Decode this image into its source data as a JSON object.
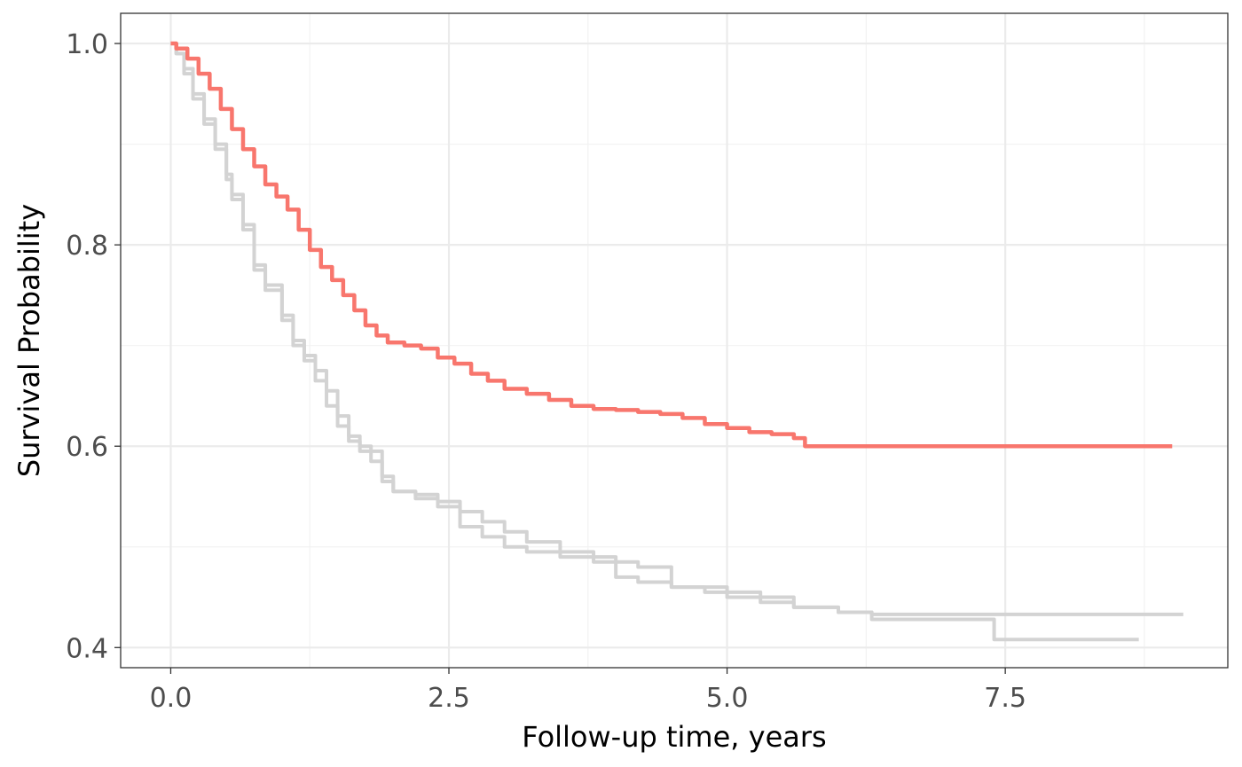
{
  "chart_data": {
    "type": "line",
    "xlabel": "Follow-up time, years",
    "ylabel": "Survival Probability",
    "xlim": [
      -0.45,
      9.5
    ],
    "ylim": [
      0.38,
      1.03
    ],
    "x_ticks": [
      0.0,
      2.5,
      5.0,
      7.5
    ],
    "x_tick_labels": [
      "0.0",
      "2.5",
      "5.0",
      "7.5"
    ],
    "y_ticks": [
      0.4,
      0.6,
      0.8,
      1.0
    ],
    "y_tick_labels": [
      "0.4",
      "0.6",
      "0.8",
      "1.0"
    ],
    "grid": true,
    "step": true,
    "series": [
      {
        "color": "#d3d3d3",
        "x": [
          0.0,
          0.05,
          0.12,
          0.2,
          0.3,
          0.4,
          0.5,
          0.55,
          0.65,
          0.75,
          0.85,
          1.0,
          1.1,
          1.2,
          1.3,
          1.4,
          1.5,
          1.6,
          1.7,
          1.8,
          1.9,
          2.0,
          2.2,
          2.4,
          2.6,
          2.8,
          3.0,
          3.2,
          3.5,
          3.8,
          4.0,
          4.2,
          4.5,
          4.8,
          5.0,
          5.3,
          5.6,
          6.0,
          6.3,
          7.0,
          7.4,
          7.8,
          8.2,
          8.7
        ],
        "y": [
          1.0,
          0.99,
          0.975,
          0.95,
          0.925,
          0.9,
          0.87,
          0.85,
          0.82,
          0.78,
          0.76,
          0.73,
          0.7,
          0.69,
          0.675,
          0.655,
          0.63,
          0.61,
          0.595,
          0.585,
          0.565,
          0.555,
          0.548,
          0.54,
          0.52,
          0.51,
          0.5,
          0.495,
          0.49,
          0.485,
          0.47,
          0.465,
          0.46,
          0.455,
          0.45,
          0.445,
          0.44,
          0.435,
          0.428,
          0.428,
          0.408,
          0.408,
          0.408,
          0.408
        ]
      },
      {
        "color": "#d3d3d3",
        "x": [
          0.0,
          0.05,
          0.12,
          0.2,
          0.3,
          0.4,
          0.5,
          0.55,
          0.65,
          0.75,
          0.85,
          1.0,
          1.1,
          1.2,
          1.3,
          1.4,
          1.5,
          1.6,
          1.7,
          1.8,
          1.9,
          2.0,
          2.2,
          2.4,
          2.6,
          2.8,
          3.0,
          3.2,
          3.5,
          3.8,
          4.0,
          4.2,
          4.5,
          4.8,
          5.0,
          5.3,
          5.6,
          6.0,
          6.3,
          7.0,
          7.5,
          8.0,
          8.5,
          9.1
        ],
        "y": [
          1.0,
          0.99,
          0.97,
          0.945,
          0.92,
          0.895,
          0.865,
          0.845,
          0.815,
          0.775,
          0.755,
          0.725,
          0.705,
          0.685,
          0.665,
          0.64,
          0.62,
          0.605,
          0.6,
          0.595,
          0.57,
          0.555,
          0.552,
          0.545,
          0.535,
          0.525,
          0.515,
          0.505,
          0.495,
          0.49,
          0.485,
          0.48,
          0.46,
          0.46,
          0.455,
          0.45,
          0.44,
          0.435,
          0.433,
          0.433,
          0.433,
          0.433,
          0.433,
          0.433
        ]
      },
      {
        "color": "#f8766d",
        "x": [
          0.0,
          0.05,
          0.15,
          0.25,
          0.35,
          0.45,
          0.55,
          0.65,
          0.75,
          0.85,
          0.95,
          1.05,
          1.15,
          1.25,
          1.35,
          1.45,
          1.55,
          1.65,
          1.75,
          1.85,
          1.95,
          2.1,
          2.25,
          2.4,
          2.55,
          2.7,
          2.85,
          3.0,
          3.2,
          3.4,
          3.6,
          3.8,
          4.0,
          4.2,
          4.4,
          4.6,
          4.8,
          5.0,
          5.2,
          5.4,
          5.6,
          5.7,
          6.0,
          7.0,
          8.0,
          9.0
        ],
        "y": [
          1.0,
          0.995,
          0.985,
          0.97,
          0.955,
          0.935,
          0.915,
          0.895,
          0.878,
          0.86,
          0.848,
          0.835,
          0.815,
          0.795,
          0.778,
          0.765,
          0.75,
          0.735,
          0.72,
          0.71,
          0.703,
          0.7,
          0.697,
          0.688,
          0.682,
          0.672,
          0.665,
          0.657,
          0.652,
          0.646,
          0.64,
          0.637,
          0.636,
          0.634,
          0.632,
          0.628,
          0.622,
          0.618,
          0.614,
          0.612,
          0.608,
          0.6,
          0.6,
          0.6,
          0.6,
          0.6
        ]
      }
    ]
  }
}
